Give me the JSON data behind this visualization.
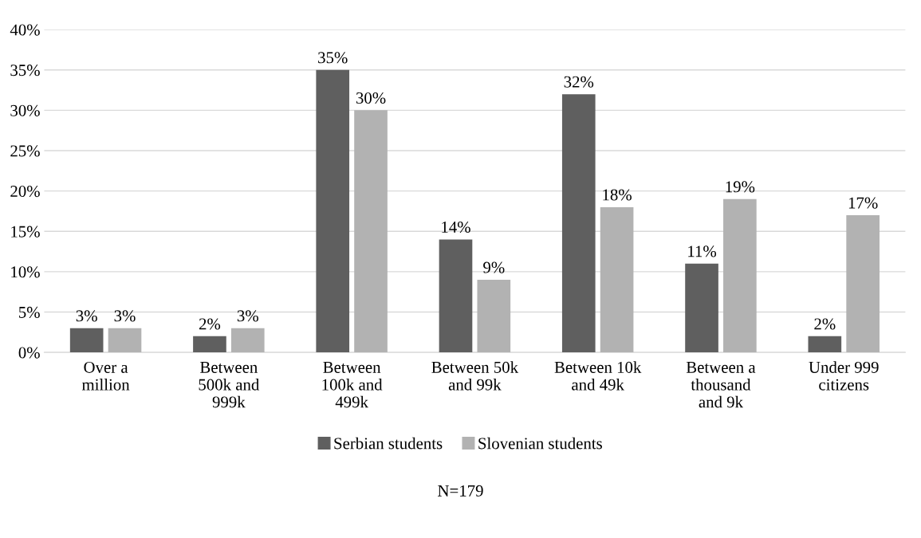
{
  "chart_data": {
    "type": "bar",
    "categories": [
      "Over a million",
      "Between 500k and 999k",
      "Between 100k and 499k",
      "Between 50k and 99k",
      "Between 10k and 49k",
      "Between a thousand and 9k",
      "Under 999 citizens"
    ],
    "series": [
      {
        "name": "Serbian students",
        "color": "#5f5f5f",
        "values": [
          3,
          2,
          35,
          14,
          32,
          11,
          2
        ],
        "value_labels": [
          "3%",
          "2%",
          "35%",
          "14%",
          "32%",
          "11%",
          "2%"
        ]
      },
      {
        "name": "Slovenian students",
        "color": "#b2b2b2",
        "values": [
          3,
          3,
          30,
          9,
          18,
          19,
          17
        ],
        "value_labels": [
          "3%",
          "3%",
          "30%",
          "9%",
          "18%",
          "19%",
          "17%"
        ]
      }
    ],
    "ylim": [
      0,
      40
    ],
    "yticks": [
      {
        "value": 0,
        "label": "0%"
      },
      {
        "value": 5,
        "label": "5%"
      },
      {
        "value": 10,
        "label": "10%"
      },
      {
        "value": 15,
        "label": "15%"
      },
      {
        "value": 20,
        "label": "20%"
      },
      {
        "value": 25,
        "label": "25%"
      },
      {
        "value": 30,
        "label": "30%"
      },
      {
        "value": 35,
        "label": "35%"
      },
      {
        "value": 40,
        "label": "40%"
      }
    ],
    "grid": "y",
    "legend": "bottom",
    "annotations": [
      "N=179"
    ]
  }
}
